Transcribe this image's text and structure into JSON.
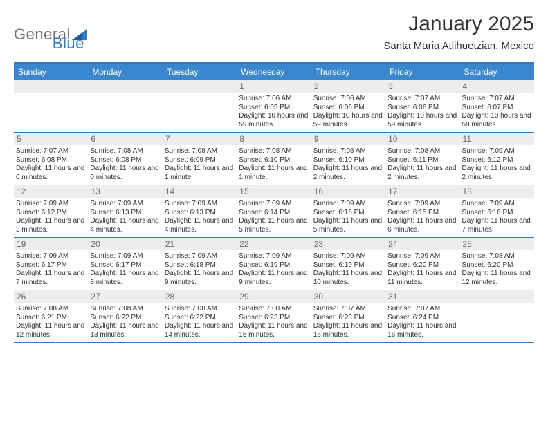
{
  "logo": {
    "part1": "General",
    "part2": "Blue"
  },
  "title": "January 2025",
  "location": "Santa Maria Atlihuetzian, Mexico",
  "colors": {
    "headerBar": "#3a87cf",
    "ruleLine": "#2f78c2",
    "dayNumBg": "#ededed",
    "dayNumText": "#6b6b6b",
    "bodyText": "#333333",
    "logoGray": "#6e6e6e",
    "logoBlue": "#2f78c2",
    "pageBg": "#ffffff"
  },
  "dow": [
    "Sunday",
    "Monday",
    "Tuesday",
    "Wednesday",
    "Thursday",
    "Friday",
    "Saturday"
  ],
  "weeks": [
    [
      {
        "empty": true
      },
      {
        "empty": true
      },
      {
        "empty": true
      },
      {
        "num": "1",
        "sunrise": "Sunrise: 7:06 AM",
        "sunset": "Sunset: 6:05 PM",
        "daylight": "Daylight: 10 hours and 59 minutes."
      },
      {
        "num": "2",
        "sunrise": "Sunrise: 7:06 AM",
        "sunset": "Sunset: 6:06 PM",
        "daylight": "Daylight: 10 hours and 59 minutes."
      },
      {
        "num": "3",
        "sunrise": "Sunrise: 7:07 AM",
        "sunset": "Sunset: 6:06 PM",
        "daylight": "Daylight: 10 hours and 59 minutes."
      },
      {
        "num": "4",
        "sunrise": "Sunrise: 7:07 AM",
        "sunset": "Sunset: 6:07 PM",
        "daylight": "Daylight: 10 hours and 59 minutes."
      }
    ],
    [
      {
        "num": "5",
        "sunrise": "Sunrise: 7:07 AM",
        "sunset": "Sunset: 6:08 PM",
        "daylight": "Daylight: 11 hours and 0 minutes."
      },
      {
        "num": "6",
        "sunrise": "Sunrise: 7:08 AM",
        "sunset": "Sunset: 6:08 PM",
        "daylight": "Daylight: 11 hours and 0 minutes."
      },
      {
        "num": "7",
        "sunrise": "Sunrise: 7:08 AM",
        "sunset": "Sunset: 6:09 PM",
        "daylight": "Daylight: 11 hours and 1 minute."
      },
      {
        "num": "8",
        "sunrise": "Sunrise: 7:08 AM",
        "sunset": "Sunset: 6:10 PM",
        "daylight": "Daylight: 11 hours and 1 minute."
      },
      {
        "num": "9",
        "sunrise": "Sunrise: 7:08 AM",
        "sunset": "Sunset: 6:10 PM",
        "daylight": "Daylight: 11 hours and 2 minutes."
      },
      {
        "num": "10",
        "sunrise": "Sunrise: 7:08 AM",
        "sunset": "Sunset: 6:11 PM",
        "daylight": "Daylight: 11 hours and 2 minutes."
      },
      {
        "num": "11",
        "sunrise": "Sunrise: 7:09 AM",
        "sunset": "Sunset: 6:12 PM",
        "daylight": "Daylight: 11 hours and 2 minutes."
      }
    ],
    [
      {
        "num": "12",
        "sunrise": "Sunrise: 7:09 AM",
        "sunset": "Sunset: 6:12 PM",
        "daylight": "Daylight: 11 hours and 3 minutes."
      },
      {
        "num": "13",
        "sunrise": "Sunrise: 7:09 AM",
        "sunset": "Sunset: 6:13 PM",
        "daylight": "Daylight: 11 hours and 4 minutes."
      },
      {
        "num": "14",
        "sunrise": "Sunrise: 7:09 AM",
        "sunset": "Sunset: 6:13 PM",
        "daylight": "Daylight: 11 hours and 4 minutes."
      },
      {
        "num": "15",
        "sunrise": "Sunrise: 7:09 AM",
        "sunset": "Sunset: 6:14 PM",
        "daylight": "Daylight: 11 hours and 5 minutes."
      },
      {
        "num": "16",
        "sunrise": "Sunrise: 7:09 AM",
        "sunset": "Sunset: 6:15 PM",
        "daylight": "Daylight: 11 hours and 5 minutes."
      },
      {
        "num": "17",
        "sunrise": "Sunrise: 7:09 AM",
        "sunset": "Sunset: 6:15 PM",
        "daylight": "Daylight: 11 hours and 6 minutes."
      },
      {
        "num": "18",
        "sunrise": "Sunrise: 7:09 AM",
        "sunset": "Sunset: 6:16 PM",
        "daylight": "Daylight: 11 hours and 7 minutes."
      }
    ],
    [
      {
        "num": "19",
        "sunrise": "Sunrise: 7:09 AM",
        "sunset": "Sunset: 6:17 PM",
        "daylight": "Daylight: 11 hours and 7 minutes."
      },
      {
        "num": "20",
        "sunrise": "Sunrise: 7:09 AM",
        "sunset": "Sunset: 6:17 PM",
        "daylight": "Daylight: 11 hours and 8 minutes."
      },
      {
        "num": "21",
        "sunrise": "Sunrise: 7:09 AM",
        "sunset": "Sunset: 6:18 PM",
        "daylight": "Daylight: 11 hours and 9 minutes."
      },
      {
        "num": "22",
        "sunrise": "Sunrise: 7:09 AM",
        "sunset": "Sunset: 6:19 PM",
        "daylight": "Daylight: 11 hours and 9 minutes."
      },
      {
        "num": "23",
        "sunrise": "Sunrise: 7:09 AM",
        "sunset": "Sunset: 6:19 PM",
        "daylight": "Daylight: 11 hours and 10 minutes."
      },
      {
        "num": "24",
        "sunrise": "Sunrise: 7:09 AM",
        "sunset": "Sunset: 6:20 PM",
        "daylight": "Daylight: 11 hours and 11 minutes."
      },
      {
        "num": "25",
        "sunrise": "Sunrise: 7:08 AM",
        "sunset": "Sunset: 6:20 PM",
        "daylight": "Daylight: 11 hours and 12 minutes."
      }
    ],
    [
      {
        "num": "26",
        "sunrise": "Sunrise: 7:08 AM",
        "sunset": "Sunset: 6:21 PM",
        "daylight": "Daylight: 11 hours and 12 minutes."
      },
      {
        "num": "27",
        "sunrise": "Sunrise: 7:08 AM",
        "sunset": "Sunset: 6:22 PM",
        "daylight": "Daylight: 11 hours and 13 minutes."
      },
      {
        "num": "28",
        "sunrise": "Sunrise: 7:08 AM",
        "sunset": "Sunset: 6:22 PM",
        "daylight": "Daylight: 11 hours and 14 minutes."
      },
      {
        "num": "29",
        "sunrise": "Sunrise: 7:08 AM",
        "sunset": "Sunset: 6:23 PM",
        "daylight": "Daylight: 11 hours and 15 minutes."
      },
      {
        "num": "30",
        "sunrise": "Sunrise: 7:07 AM",
        "sunset": "Sunset: 6:23 PM",
        "daylight": "Daylight: 11 hours and 16 minutes."
      },
      {
        "num": "31",
        "sunrise": "Sunrise: 7:07 AM",
        "sunset": "Sunset: 6:24 PM",
        "daylight": "Daylight: 11 hours and 16 minutes."
      },
      {
        "empty": true
      }
    ]
  ]
}
